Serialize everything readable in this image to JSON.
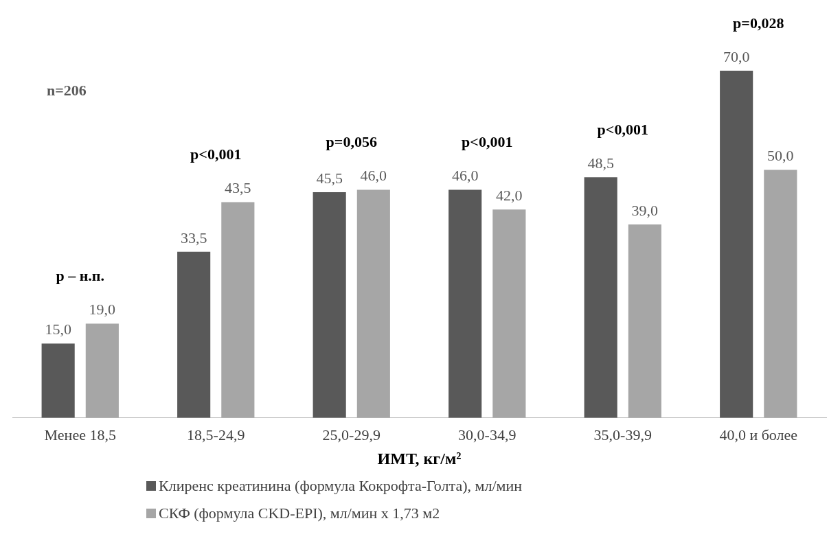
{
  "chart_data": {
    "type": "bar",
    "xlabel": "ИМТ, кг/м²",
    "categories": [
      "Менее 18,5",
      "18,5-24,9",
      "25,0-29,9",
      "30,0-34,9",
      "35,0-39,9",
      "40,0 и более"
    ],
    "series": [
      {
        "name": "Клиренс креатинина (формула Кокрофта-Голта), мл/мин",
        "color": "#595959",
        "values": [
          15.0,
          33.5,
          45.5,
          46.0,
          48.5,
          70.0
        ],
        "value_labels": [
          "15,0",
          "33,5",
          "45,5",
          "46,0",
          "48,5",
          "70,0"
        ]
      },
      {
        "name": "СКФ (формула CKD-EPI), мл/мин х 1,73 м2",
        "color": "#a6a6a6",
        "values": [
          19.0,
          43.5,
          46.0,
          42.0,
          39.0,
          50.0
        ],
        "value_labels": [
          "19,0",
          "43,5",
          "46,0",
          "42,0",
          "39,0",
          "50,0"
        ]
      }
    ],
    "annotations": [
      "n=206",
      "p – н.п.",
      "p<0,001",
      "p=0,056",
      "p<0,001",
      "p<0,001",
      "p=0,028"
    ],
    "grid": false,
    "legend": "bottom"
  }
}
